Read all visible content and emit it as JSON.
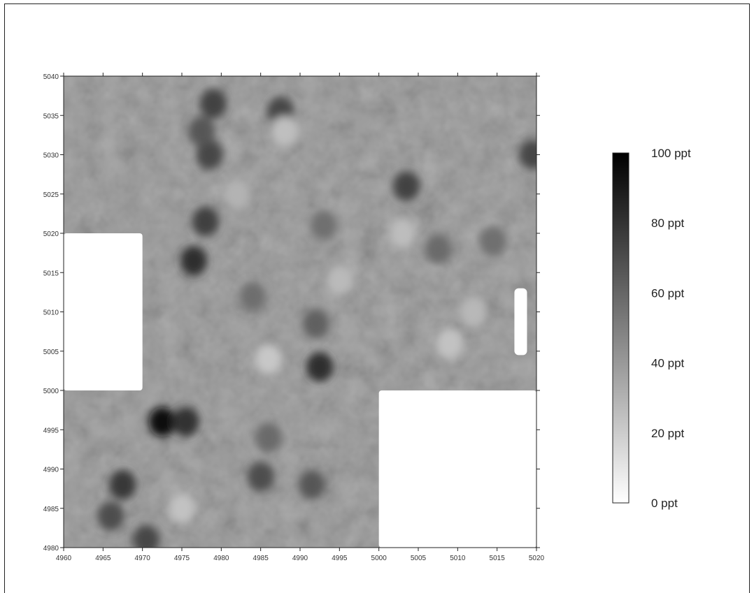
{
  "chart_data": {
    "type": "heatmap",
    "title": "",
    "xlabel": "",
    "ylabel": "",
    "xlim": [
      4960,
      5020
    ],
    "ylim": [
      4980,
      5040
    ],
    "x_ticks": [
      4960,
      4965,
      4970,
      4975,
      4980,
      4985,
      4990,
      4995,
      5000,
      5005,
      5010,
      5015,
      5020
    ],
    "y_ticks": [
      5040,
      5035,
      5030,
      5025,
      5020,
      5015,
      5010,
      5005,
      5000,
      4995,
      4990,
      4985,
      4980
    ],
    "x_tick_labels": [
      "4960",
      "4965",
      "4970",
      "4975",
      "4980",
      "4985",
      "4990",
      "4995",
      "5000",
      "5005",
      "5010",
      "5015",
      "5020"
    ],
    "y_tick_labels": [
      "5040",
      "5035",
      "5030",
      "5025",
      "5020",
      "5015",
      "5010",
      "5005",
      "5000",
      "4995",
      "4990",
      "4985",
      "4980"
    ],
    "colorbar": {
      "min": 0,
      "max": 100,
      "unit": "ppt",
      "labels": [
        "100 ppt",
        "80 ppt",
        "60 ppt",
        "40 ppt",
        "20 ppt",
        "0 ppt"
      ],
      "low_color": "#ffffff",
      "high_color": "#000000"
    },
    "background_level": 45,
    "no_data_regions": [
      {
        "x": [
          4960,
          4970
        ],
        "y": [
          5000,
          5020
        ]
      },
      {
        "x": [
          5000,
          5020
        ],
        "y": [
          4980,
          5000
        ]
      },
      {
        "x": [
          5017.2,
          5018.8
        ],
        "y": [
          5004.5,
          5013
        ]
      }
    ],
    "features": [
      {
        "x": 4972.5,
        "y": 4996,
        "value": 95
      },
      {
        "x": 4975.5,
        "y": 4996,
        "value": 80
      },
      {
        "x": 4967.5,
        "y": 4988,
        "value": 78
      },
      {
        "x": 4966,
        "y": 4984,
        "value": 70
      },
      {
        "x": 4970.5,
        "y": 4981,
        "value": 72
      },
      {
        "x": 4976.5,
        "y": 5016.5,
        "value": 82
      },
      {
        "x": 4978,
        "y": 5021.5,
        "value": 75
      },
      {
        "x": 4978.5,
        "y": 5030,
        "value": 72
      },
      {
        "x": 4979,
        "y": 5036.5,
        "value": 74
      },
      {
        "x": 4977.5,
        "y": 5033,
        "value": 66
      },
      {
        "x": 4987.5,
        "y": 5035.5,
        "value": 72
      },
      {
        "x": 4992.5,
        "y": 5003,
        "value": 82
      },
      {
        "x": 4992,
        "y": 5008.5,
        "value": 62
      },
      {
        "x": 4985,
        "y": 4989,
        "value": 70
      },
      {
        "x": 4991.5,
        "y": 4988,
        "value": 66
      },
      {
        "x": 4986,
        "y": 4994,
        "value": 58
      },
      {
        "x": 5003.5,
        "y": 5026,
        "value": 74
      },
      {
        "x": 5007.5,
        "y": 5018,
        "value": 58
      },
      {
        "x": 4984,
        "y": 5012,
        "value": 57
      },
      {
        "x": 4993,
        "y": 5021,
        "value": 56
      },
      {
        "x": 5019.5,
        "y": 5030,
        "value": 72
      },
      {
        "x": 5014.5,
        "y": 5019,
        "value": 56
      },
      {
        "x": 4986,
        "y": 5004,
        "value": 22
      },
      {
        "x": 4988,
        "y": 5033,
        "value": 25
      },
      {
        "x": 5009,
        "y": 5006,
        "value": 24
      },
      {
        "x": 5003,
        "y": 5020,
        "value": 26
      },
      {
        "x": 4975,
        "y": 4985,
        "value": 24
      },
      {
        "x": 4995,
        "y": 5014,
        "value": 27
      },
      {
        "x": 5012,
        "y": 5010,
        "value": 28
      },
      {
        "x": 4982,
        "y": 5025,
        "value": 30
      }
    ]
  }
}
